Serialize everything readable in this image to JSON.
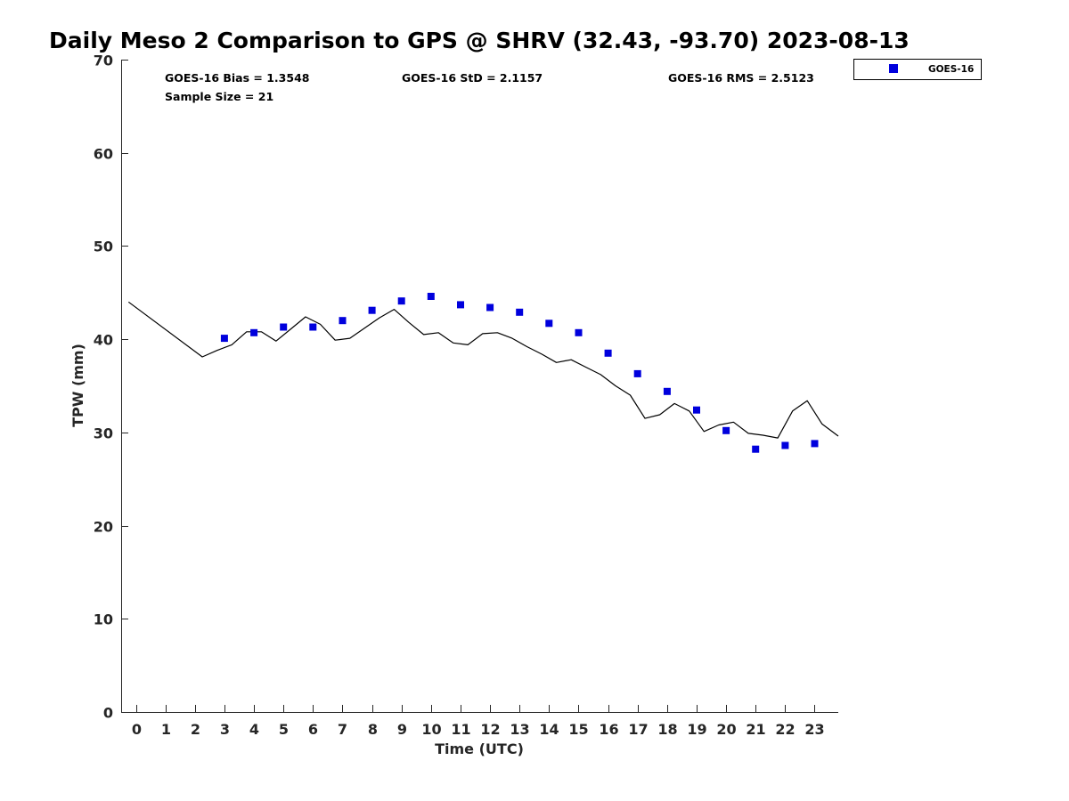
{
  "chart_data": {
    "type": "line",
    "title": "Daily Meso 2 Comparison to GPS @ SHRV (32.43, -93.70) 2023-08-13",
    "xlabel": "Time (UTC)",
    "ylabel": "TPW (mm)",
    "xlim": [
      -0.5,
      23.8
    ],
    "ylim": [
      0,
      70
    ],
    "xticks": [
      0,
      1,
      2,
      3,
      4,
      5,
      6,
      7,
      8,
      9,
      10,
      11,
      12,
      13,
      14,
      15,
      16,
      17,
      18,
      19,
      20,
      21,
      22,
      23
    ],
    "yticks": [
      0,
      10,
      20,
      30,
      40,
      50,
      60,
      70
    ],
    "grid": false,
    "legend_position": "outside-top-right",
    "stats": {
      "bias": "GOES-16 Bias = 1.3548",
      "std": "GOES-16 StD = 2.1157",
      "rms": "GOES-16 RMS = 2.5123",
      "sample": "Sample Size = 21"
    },
    "series": [
      {
        "name": "GOES-16",
        "marker": "square",
        "color": "#0000dd",
        "x": [
          3,
          4,
          5,
          6,
          7,
          8,
          9,
          10,
          11,
          12,
          13,
          14,
          15,
          16,
          17,
          18,
          19,
          20,
          21,
          22,
          23
        ],
        "y": [
          40.1,
          40.7,
          41.3,
          41.3,
          42.0,
          43.1,
          44.1,
          44.6,
          43.7,
          43.4,
          42.9,
          41.7,
          40.7,
          38.5,
          36.3,
          34.4,
          32.4,
          30.2,
          28.2,
          28.6,
          28.8
        ]
      },
      {
        "marker": "none",
        "color": "#000000",
        "x": [
          -0.25,
          2.25,
          2.75,
          3.25,
          3.75,
          4.25,
          4.75,
          5.25,
          5.75,
          6.25,
          6.75,
          7.25,
          7.75,
          8.25,
          8.75,
          9.25,
          9.75,
          10.25,
          10.75,
          11.25,
          11.75,
          12.25,
          12.75,
          13.25,
          13.75,
          14.25,
          14.75,
          15.25,
          15.75,
          16.25,
          16.75,
          17.25,
          17.75,
          18.25,
          18.75,
          19.25,
          19.75,
          20.25,
          20.75,
          21.25,
          21.75,
          22.25,
          22.75,
          23.25,
          23.8
        ],
        "y": [
          44.0,
          38.1,
          38.8,
          39.4,
          40.8,
          40.8,
          39.8,
          41.1,
          42.4,
          41.6,
          39.9,
          40.1,
          41.2,
          42.3,
          43.2,
          41.8,
          40.5,
          40.7,
          39.6,
          39.4,
          40.6,
          40.7,
          40.1,
          39.2,
          38.4,
          37.5,
          37.8,
          37.0,
          36.2,
          35.0,
          34.0,
          31.5,
          31.9,
          33.1,
          32.3,
          30.1,
          30.8,
          31.1,
          29.9,
          29.7,
          29.4,
          32.3,
          33.4,
          30.9,
          29.6
        ]
      }
    ]
  }
}
